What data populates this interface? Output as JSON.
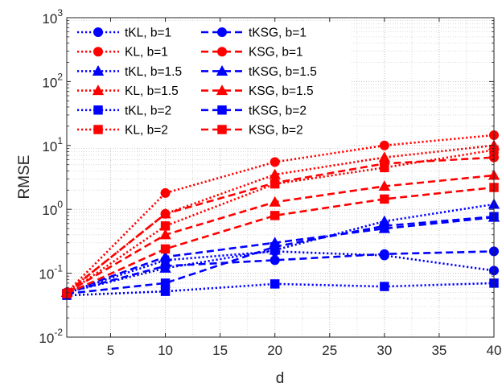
{
  "chart_data": {
    "type": "line",
    "title": "",
    "xlabel": "d",
    "ylabel": "RMSE",
    "xlim": [
      1,
      40
    ],
    "ylim": [
      0.01,
      1000
    ],
    "yscale": "log",
    "grid": true,
    "legend_position": "top-left",
    "x_ticks": [
      5,
      10,
      15,
      20,
      25,
      30,
      35,
      40
    ],
    "x_tick_labels": [
      "5",
      "10",
      "15",
      "20",
      "25",
      "30",
      "35",
      "40"
    ],
    "y_ticks": [
      0.01,
      0.1,
      1,
      10,
      100,
      1000
    ],
    "y_tick_labels": [
      {
        "base": "10",
        "exp": "-2"
      },
      {
        "base": "10",
        "exp": "-1"
      },
      {
        "base": "10",
        "exp": "0"
      },
      {
        "base": "10",
        "exp": "1"
      },
      {
        "base": "10",
        "exp": "2"
      },
      {
        "base": "10",
        "exp": "3"
      }
    ],
    "colors": {
      "blue": "#0000ff",
      "red": "#ff0000"
    },
    "x": [
      1,
      10,
      20,
      30,
      40
    ],
    "series": [
      {
        "name": "tKL, b=1",
        "color": "#0000ff",
        "style": "dotted",
        "marker": "circle",
        "values": [
          0.05,
          0.16,
          0.22,
          0.19,
          0.11
        ]
      },
      {
        "name": "KL, b=1",
        "color": "#ff0000",
        "style": "dotted",
        "marker": "circle",
        "values": [
          0.05,
          1.8,
          5.5,
          10.0,
          14.5
        ]
      },
      {
        "name": "tKL, b=1.5",
        "color": "#0000ff",
        "style": "dotted",
        "marker": "triangle",
        "values": [
          0.05,
          0.12,
          0.23,
          0.65,
          1.2
        ]
      },
      {
        "name": "KL, b=1.5",
        "color": "#ff0000",
        "style": "dotted",
        "marker": "triangle",
        "values": [
          0.05,
          0.85,
          3.5,
          6.5,
          10.0
        ]
      },
      {
        "name": "tKL, b=2",
        "color": "#0000ff",
        "style": "dotted",
        "marker": "square",
        "values": [
          0.045,
          0.052,
          0.068,
          0.062,
          0.07
        ]
      },
      {
        "name": "KL, b=2",
        "color": "#ff0000",
        "style": "dotted",
        "marker": "square",
        "values": [
          0.048,
          0.55,
          2.5,
          4.5,
          8.5
        ]
      },
      {
        "name": "tKSG, b=1",
        "color": "#0000ff",
        "style": "dashed",
        "marker": "circle",
        "values": [
          0.05,
          0.13,
          0.16,
          0.2,
          0.22
        ]
      },
      {
        "name": "KSG, b=1",
        "color": "#ff0000",
        "style": "dashed",
        "marker": "circle",
        "values": [
          0.05,
          0.85,
          2.6,
          5.2,
          6.5
        ]
      },
      {
        "name": "tKSG, b=1.5",
        "color": "#0000ff",
        "style": "dashed",
        "marker": "triangle",
        "values": [
          0.05,
          0.18,
          0.3,
          0.5,
          0.75
        ]
      },
      {
        "name": "KSG, b=1.5",
        "color": "#ff0000",
        "style": "dashed",
        "marker": "triangle",
        "values": [
          0.05,
          0.4,
          1.3,
          2.3,
          3.4
        ]
      },
      {
        "name": "tKSG, b=2",
        "color": "#0000ff",
        "style": "dashed",
        "marker": "square",
        "values": [
          0.048,
          0.07,
          0.26,
          0.55,
          0.77
        ]
      },
      {
        "name": "KSG, b=2",
        "color": "#ff0000",
        "style": "dashed",
        "marker": "square",
        "values": [
          0.048,
          0.24,
          0.8,
          1.45,
          2.2
        ]
      }
    ]
  }
}
